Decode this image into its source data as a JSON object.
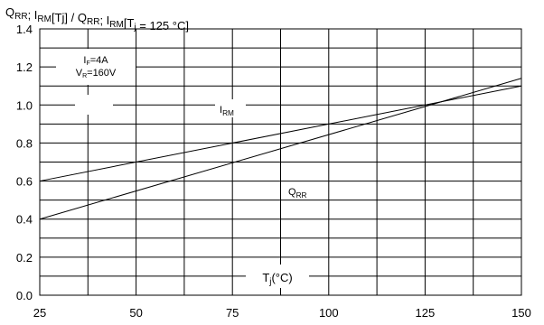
{
  "chart_data": {
    "type": "line",
    "title": {
      "parts": [
        {
          "text": "Q",
          "sub": "RR"
        },
        {
          "text": "; I",
          "sub": "RM"
        },
        {
          "text": "[Tj] / Q",
          "sub": "RR"
        },
        {
          "text": "; I",
          "sub": "RM"
        },
        {
          "text": "[T",
          "sub": "j"
        },
        {
          "text": " = 125 °C]",
          "sub": ""
        }
      ]
    },
    "xlabel": {
      "main": "T",
      "sub": "j",
      "rest": "(°C)"
    },
    "ylabel": "",
    "xlim": [
      25,
      150
    ],
    "ylim": [
      0.0,
      1.4
    ],
    "x_ticks": [
      25,
      50,
      75,
      100,
      125,
      150
    ],
    "y_ticks": [
      0.0,
      0.2,
      0.4,
      0.6,
      0.8,
      1.0,
      1.2,
      1.4
    ],
    "x_tick_labels": [
      "25",
      "50",
      "75",
      "100",
      "125",
      "150"
    ],
    "y_tick_labels": [
      "0.0",
      "0.2",
      "0.4",
      "0.6",
      "0.8",
      "1.0",
      "1.2",
      "1.4"
    ],
    "x_minor_step": 12.5,
    "y_minor_step": 0.1,
    "grid": true,
    "conditions": [
      {
        "text": "I",
        "sub": "F",
        "rest": "=4A"
      },
      {
        "text": "V",
        "sub": "R",
        "rest": "=160V"
      }
    ],
    "series": [
      {
        "name": "I",
        "sub": "RM",
        "x": [
          25,
          150
        ],
        "y": [
          0.6,
          1.1
        ]
      },
      {
        "name": "Q",
        "sub": "RR",
        "x": [
          25,
          150
        ],
        "y": [
          0.4,
          1.14
        ]
      }
    ]
  }
}
